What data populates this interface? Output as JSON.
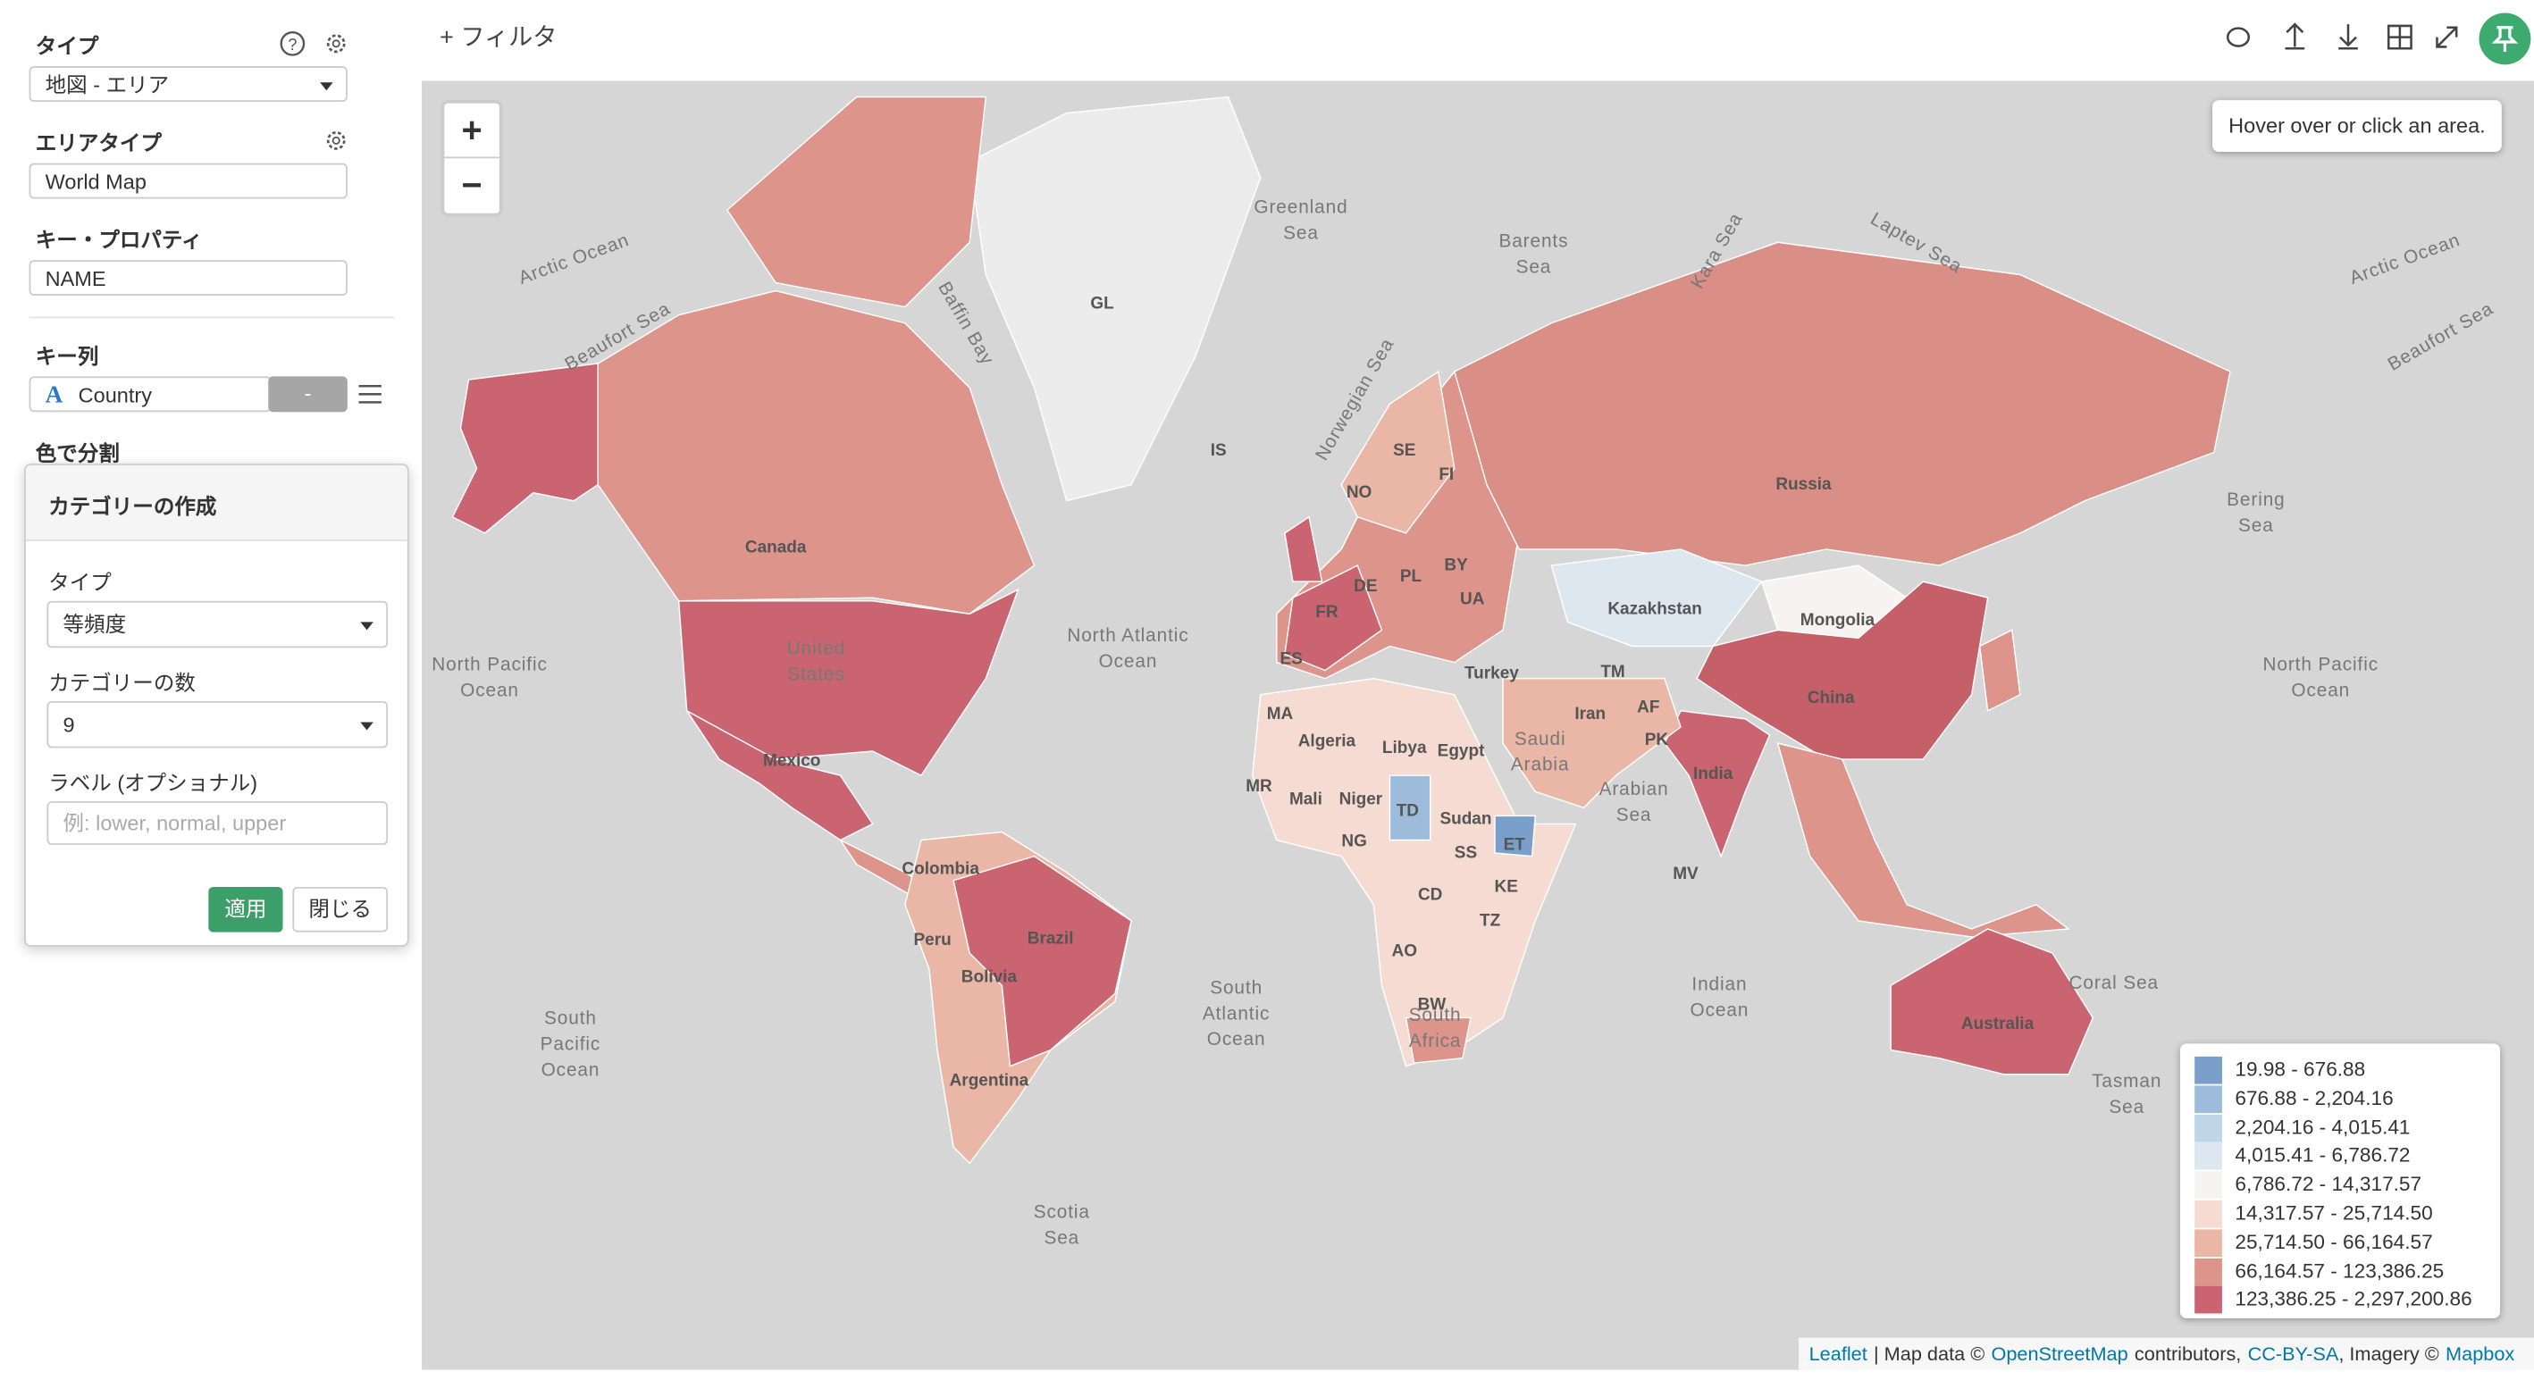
{
  "sidebar": {
    "type_label": "タイプ",
    "type_value": "地図 - エリア",
    "area_type_label": "エリアタイプ",
    "area_type_value": "World Map",
    "key_property_label": "キー・プロパティ",
    "key_property_value": "NAME",
    "key_column_label": "キー列",
    "key_column_icon": "A",
    "key_column_value": "Country",
    "key_column_button": "-",
    "color_split_label": "色で分割"
  },
  "popup": {
    "title": "カテゴリーの作成",
    "type_label": "タイプ",
    "type_value": "等頻度",
    "count_label": "カテゴリーの数",
    "count_value": "9",
    "label_label": "ラベル (オプショナル)",
    "label_placeholder": "例: lower, normal, upper",
    "apply": "適用",
    "close": "閉じる"
  },
  "toolbar": {
    "filter_icon": "+",
    "filter": "フィルタ"
  },
  "map": {
    "zoom_in": "+",
    "zoom_out": "−",
    "hover_info": "Hover over or click an area.",
    "legend": [
      {
        "label": "19.98 - 676.88",
        "color": "#7a9fca"
      },
      {
        "label": "676.88 - 2,204.16",
        "color": "#9dbcdb"
      },
      {
        "label": "2,204.16 - 4,015.41",
        "color": "#bfd5e8"
      },
      {
        "label": "4,015.41 - 6,786.72",
        "color": "#dde7f0"
      },
      {
        "label": "6,786.72 - 14,317.57",
        "color": "#f6f3f2"
      },
      {
        "label": "14,317.57 - 25,714.50",
        "color": "#f6dbd2"
      },
      {
        "label": "25,714.50 - 66,164.57",
        "color": "#eab6a6"
      },
      {
        "label": "66,164.57 - 123,386.25",
        "color": "#dd948b"
      },
      {
        "label": "123,386.25 - 2,297,200.86",
        "color": "#c96470"
      }
    ],
    "labels": [
      [
        "Greenland",
        "Sea"
      ],
      [
        "Arctic Ocean"
      ],
      [
        "Arctic Ocean"
      ],
      [
        "Beaufort Sea"
      ],
      [
        "Beaufort Sea"
      ],
      [
        "Baffin Bay"
      ],
      [
        "GL"
      ],
      [
        "IS"
      ],
      [
        "Barents",
        "Sea"
      ],
      [
        "Kara Sea"
      ],
      [
        "Laptev Sea"
      ],
      [
        "Norwegian Sea"
      ],
      [
        "Canada"
      ],
      [
        "United",
        "States"
      ],
      [
        "Mexico"
      ],
      [
        "North Atlantic",
        "Ocean"
      ],
      [
        "North Pacific",
        "Ocean"
      ],
      [
        "North Pacific",
        "Ocean"
      ],
      [
        "Russia"
      ],
      [
        "Kazakhstan"
      ],
      [
        "Mongolia"
      ],
      [
        "China"
      ],
      [
        "India"
      ],
      [
        "Iran"
      ],
      [
        "Turkey"
      ],
      [
        "UA"
      ],
      [
        "BY"
      ],
      [
        "FI"
      ],
      [
        "SE"
      ],
      [
        "NO"
      ],
      [
        "PL"
      ],
      [
        "DE"
      ],
      [
        "FR"
      ],
      [
        "ES"
      ],
      [
        "Algeria"
      ],
      [
        "Libya"
      ],
      [
        "Egypt"
      ],
      [
        "Saudi",
        "Arabia"
      ],
      [
        "Arabian",
        "Sea"
      ],
      [
        "Mali"
      ],
      [
        "Niger"
      ],
      [
        "MR"
      ],
      [
        "TD"
      ],
      [
        "Sudan"
      ],
      [
        "NG"
      ],
      [
        "ET"
      ],
      [
        "SS"
      ],
      [
        "CD"
      ],
      [
        "KE"
      ],
      [
        "TZ"
      ],
      [
        "AO"
      ],
      [
        "BW"
      ],
      [
        "South",
        "Africa"
      ],
      [
        "Brazil"
      ],
      [
        "Colombia"
      ],
      [
        "Peru"
      ],
      [
        "Bolivia"
      ],
      [
        "Argentina"
      ],
      [
        "South",
        "Atlantic",
        "Ocean"
      ],
      [
        "South",
        "Pacific",
        "Ocean"
      ],
      [
        "Indian",
        "Ocean"
      ],
      [
        "Australia"
      ],
      [
        "Coral Sea"
      ],
      [
        "Tasman",
        "Sea"
      ],
      [
        "Scotia",
        "Sea"
      ],
      [
        "Bering",
        "Sea"
      ],
      [
        "MV"
      ],
      [
        "PK"
      ],
      [
        "AF"
      ],
      [
        "TM"
      ],
      [
        "MA"
      ]
    ],
    "attribution": [
      "Leaflet",
      "| Map data ©",
      "OpenStreetMap",
      "contributors,",
      "CC-BY-SA",
      ", Imagery ©",
      "Mapbox"
    ]
  }
}
